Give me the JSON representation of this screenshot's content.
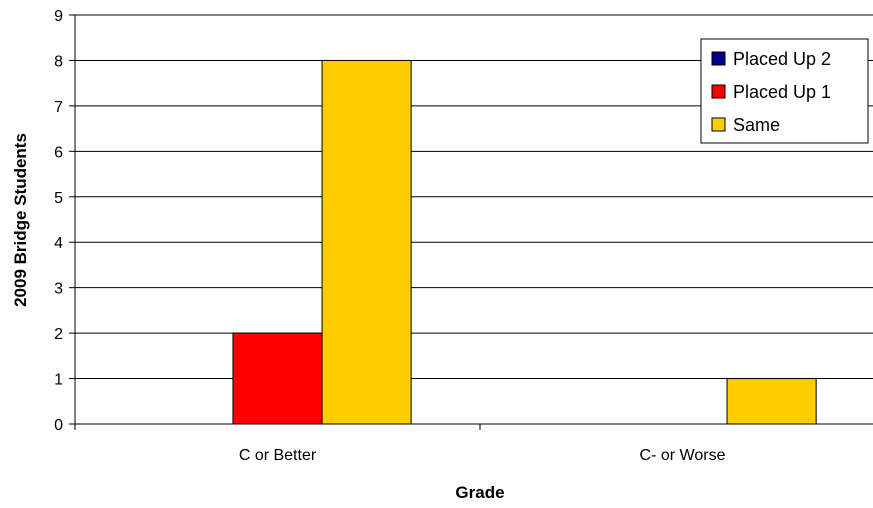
{
  "chart_data": {
    "type": "bar",
    "title": "",
    "xlabel": "Grade",
    "ylabel": "2009 Bridge Students",
    "categories": [
      "C or Better",
      "C- or Worse"
    ],
    "series": [
      {
        "name": "Placed Up 2",
        "color": "#00008B",
        "values": [
          0,
          0
        ]
      },
      {
        "name": "Placed Up 1",
        "color": "#FF0000",
        "values": [
          2,
          0
        ]
      },
      {
        "name": "Same",
        "color": "#FFCC00",
        "values": [
          8,
          1
        ]
      }
    ],
    "ylim": [
      0,
      9
    ],
    "yticks": [
      "0",
      "1",
      "2",
      "3",
      "4",
      "5",
      "6",
      "7",
      "8",
      "9"
    ],
    "grid": true,
    "legend_position": "top-right"
  }
}
